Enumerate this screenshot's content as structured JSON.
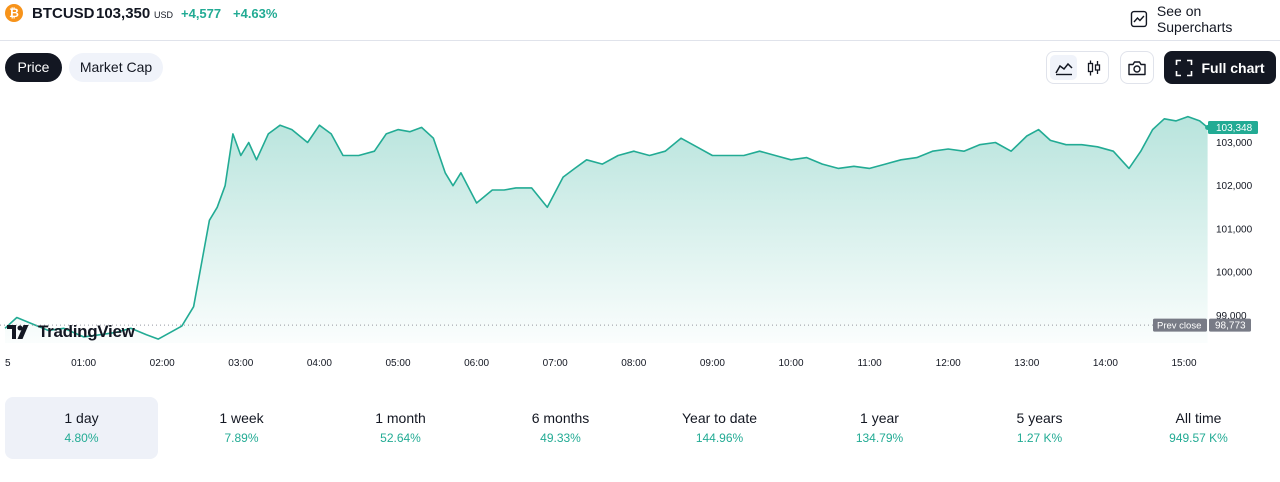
{
  "header": {
    "coin_glyph": "₿",
    "symbol": "BTCUSD",
    "price": "103,350",
    "currency": "USD",
    "change_abs": "+4,577",
    "change_pct": "+4.63%",
    "supercharts_label": "See on Supercharts"
  },
  "tabs": [
    {
      "label": "Price",
      "active": true
    },
    {
      "label": "Market Cap",
      "active": false
    }
  ],
  "toolbar": {
    "full_chart_label": "Full chart",
    "area_icon": "area-chart-icon",
    "candle_icon": "candlestick-icon",
    "camera_icon": "camera-icon",
    "fullscreen_icon": "fullscreen-icon"
  },
  "logo": {
    "text": "TradingView"
  },
  "colors": {
    "accent": "#22ab94",
    "dark": "#131722",
    "prev_close_bg": "#787b86"
  },
  "chart_data": {
    "type": "area",
    "x_ticks": [
      "5",
      "01:00",
      "02:00",
      "03:00",
      "04:00",
      "05:00",
      "06:00",
      "07:00",
      "08:00",
      "09:00",
      "10:00",
      "11:00",
      "12:00",
      "13:00",
      "14:00",
      "15:00"
    ],
    "y_ticks": [
      "103,000",
      "102,000",
      "101,000",
      "100,000",
      "99,000"
    ],
    "ylim": [
      98500,
      104100
    ],
    "grid": false,
    "prev_close": {
      "label": "Prev close",
      "value": 98773,
      "value_label": "98,773"
    },
    "last_price": {
      "value": 103348,
      "label": "103,348"
    },
    "x_hours": [
      0,
      0.15,
      0.35,
      0.55,
      0.75,
      1.0,
      1.2,
      1.4,
      1.6,
      1.8,
      1.95,
      2.1,
      2.25,
      2.4,
      2.5,
      2.6,
      2.7,
      2.8,
      2.9,
      3.0,
      3.1,
      3.2,
      3.35,
      3.5,
      3.65,
      3.85,
      4.0,
      4.15,
      4.3,
      4.5,
      4.7,
      4.85,
      5.0,
      5.15,
      5.3,
      5.45,
      5.6,
      5.7,
      5.8,
      6.0,
      6.2,
      6.35,
      6.5,
      6.7,
      6.9,
      7.1,
      7.25,
      7.4,
      7.6,
      7.8,
      8.0,
      8.2,
      8.4,
      8.6,
      8.8,
      9.0,
      9.2,
      9.4,
      9.6,
      9.8,
      10.0,
      10.2,
      10.4,
      10.6,
      10.8,
      11.0,
      11.2,
      11.4,
      11.6,
      11.8,
      12.0,
      12.2,
      12.4,
      12.6,
      12.8,
      13.0,
      13.15,
      13.3,
      13.5,
      13.7,
      13.9,
      14.1,
      14.3,
      14.45,
      14.6,
      14.75,
      14.9,
      15.05,
      15.2,
      15.3
    ],
    "values": [
      98700,
      98950,
      98800,
      98650,
      98700,
      98500,
      98550,
      98600,
      98700,
      98550,
      98450,
      98600,
      98750,
      99200,
      100200,
      101200,
      101500,
      102000,
      103200,
      102700,
      103000,
      102600,
      103200,
      103400,
      103300,
      103000,
      103400,
      103200,
      102700,
      102700,
      102800,
      103200,
      103300,
      103250,
      103350,
      103100,
      102300,
      102000,
      102300,
      101600,
      101900,
      101900,
      101950,
      101950,
      101500,
      102200,
      102400,
      102600,
      102500,
      102700,
      102800,
      102700,
      102800,
      103100,
      102900,
      102700,
      102700,
      102700,
      102800,
      102700,
      102600,
      102650,
      102500,
      102400,
      102450,
      102400,
      102500,
      102600,
      102650,
      102800,
      102850,
      102800,
      102950,
      103000,
      102800,
      103150,
      103300,
      103050,
      102950,
      102950,
      102900,
      102800,
      102400,
      102800,
      103300,
      103550,
      103500,
      103600,
      103500,
      103348
    ]
  },
  "periods": [
    {
      "label": "1 day",
      "value": "4.80%",
      "active": true
    },
    {
      "label": "1 week",
      "value": "7.89%",
      "active": false
    },
    {
      "label": "1 month",
      "value": "52.64%",
      "active": false
    },
    {
      "label": "6 months",
      "value": "49.33%",
      "active": false
    },
    {
      "label": "Year to date",
      "value": "144.96%",
      "active": false
    },
    {
      "label": "1 year",
      "value": "134.79%",
      "active": false
    },
    {
      "label": "5 years",
      "value": "1.27 K%",
      "active": false
    },
    {
      "label": "All time",
      "value": "949.57 K%",
      "active": false
    }
  ]
}
